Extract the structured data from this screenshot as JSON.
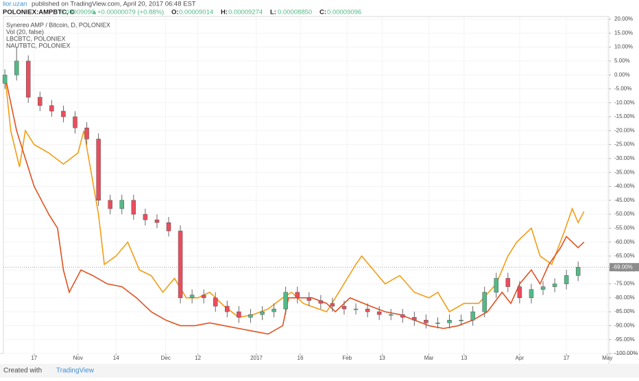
{
  "header": {
    "user": "lior.uzan",
    "published": "published on TradingView.com, April 20, 2017 06:48 EST",
    "symbol": "POLONIEX:AMPBTC, D",
    "last": "0.00009096",
    "arrow": "▲",
    "change": "+0.00000079 (+0.88%)",
    "ohlc": [
      {
        "key": "O:",
        "value": "0.00009014"
      },
      {
        "key": "H:",
        "value": "0.00009274"
      },
      {
        "key": "L:",
        "value": "0.00008850"
      },
      {
        "key": "C:",
        "value": "0.00009096"
      }
    ]
  },
  "footer": {
    "created": "Created with",
    "brand": "TradingView"
  },
  "chart_data": {
    "type": "candlestick",
    "legend": [
      "Synereo AMP / Bitcoin, D, POLONIEX",
      "Vol (20, false)"
    ],
    "ylim": [
      -100,
      20
    ],
    "yticks": [
      {
        "value": 20,
        "label": "20.00%"
      },
      {
        "value": 15,
        "label": "15.00%"
      },
      {
        "value": 10,
        "label": "10.00%"
      },
      {
        "value": 5,
        "label": "5.00%"
      },
      {
        "value": 0,
        "label": "0.00%"
      },
      {
        "value": -5,
        "label": "-5.00%"
      },
      {
        "value": -10,
        "label": "-10.00%"
      },
      {
        "value": -15,
        "label": "-15.00%"
      },
      {
        "value": -20,
        "label": "-20.00%"
      },
      {
        "value": -25,
        "label": "-25.00%"
      },
      {
        "value": -30,
        "label": "-30.00%"
      },
      {
        "value": -35,
        "label": "-35.00%"
      },
      {
        "value": -40,
        "label": "-40.00%"
      },
      {
        "value": -45,
        "label": "-45.00%"
      },
      {
        "value": -50,
        "label": "-50.00%"
      },
      {
        "value": -55,
        "label": "-55.00%"
      },
      {
        "value": -60,
        "label": "-60.00%"
      },
      {
        "value": -65,
        "label": "-65.00%"
      },
      {
        "value": -70,
        "label": "-70.00%"
      },
      {
        "value": -75,
        "label": "-75.00%"
      },
      {
        "value": -80,
        "label": "-80.00%"
      },
      {
        "value": -85,
        "label": "-85.00%"
      },
      {
        "value": -90,
        "label": "-90.00%"
      },
      {
        "value": -95,
        "label": "-95.00%"
      },
      {
        "value": -100,
        "label": "-100.00%"
      }
    ],
    "xlim": [
      -10.5,
      196.5
    ],
    "xticks": [
      {
        "value": 0,
        "label": "17"
      },
      {
        "value": 15,
        "label": "Nov"
      },
      {
        "value": 28,
        "label": "14"
      },
      {
        "value": 45,
        "label": "Dec"
      },
      {
        "value": 56,
        "label": "12"
      },
      {
        "value": 76,
        "label": "2017"
      },
      {
        "value": 91,
        "label": "16"
      },
      {
        "value": 107,
        "label": "Feb"
      },
      {
        "value": 119,
        "label": "13"
      },
      {
        "value": 135,
        "label": "Mar"
      },
      {
        "value": 147,
        "label": "13"
      },
      {
        "value": 166,
        "label": "Apr"
      },
      {
        "value": 182,
        "label": "17"
      },
      {
        "value": 196,
        "label": "May"
      }
    ],
    "last_value": {
      "value": -69,
      "label": "-69.00%"
    },
    "up_color": "#53b987",
    "down_color": "#eb4d5c",
    "candles": {
      "x": [
        -10,
        -6,
        -2,
        2,
        6,
        10,
        14,
        18,
        22,
        26,
        30,
        34,
        38,
        42,
        46,
        50,
        54,
        58,
        62,
        66,
        70,
        74,
        78,
        82,
        86,
        90,
        94,
        98,
        102,
        106,
        110,
        114,
        118,
        122,
        126,
        130,
        134,
        138,
        142,
        146,
        150,
        154,
        158,
        162,
        166,
        170,
        174,
        178,
        182,
        186
      ],
      "open": [
        -3,
        0,
        5,
        -8,
        -11,
        -13,
        -15,
        -19,
        -23,
        -45,
        -48,
        -45,
        -50,
        -52,
        -53,
        -56,
        -80,
        -79,
        -80,
        -83,
        -85,
        -87,
        -86,
        -85,
        -84,
        -78,
        -80,
        -81,
        -82,
        -83,
        -84,
        -84,
        -85,
        -86,
        -86,
        -87,
        -88,
        -89,
        -89,
        -88,
        -88,
        -85,
        -78,
        -73,
        -76,
        -80,
        -77,
        -76,
        -75,
        -72
      ],
      "high": [
        2,
        10,
        7,
        -6,
        -9,
        -11,
        -13,
        -17,
        -21,
        -43,
        -43,
        -43,
        -48,
        -50,
        -51,
        -54,
        -77,
        -77,
        -78,
        -81,
        -83,
        -84,
        -83,
        -82,
        -76,
        -76,
        -78,
        -79,
        -80,
        -81,
        -82,
        -82,
        -83,
        -84,
        -84,
        -85,
        -86,
        -87,
        -86,
        -86,
        -83,
        -76,
        -71,
        -71,
        -74,
        -75,
        -74,
        -73,
        -70,
        -67
      ],
      "low": [
        -5,
        -2,
        -10,
        -13,
        -15,
        -17,
        -21,
        -25,
        -47,
        -50,
        -50,
        -52,
        -54,
        -55,
        -58,
        -82,
        -82,
        -82,
        -85,
        -87,
        -89,
        -89,
        -88,
        -87,
        -86,
        -82,
        -83,
        -84,
        -85,
        -86,
        -86,
        -87,
        -88,
        -88,
        -89,
        -90,
        -91,
        -91,
        -91,
        -90,
        -90,
        -87,
        -80,
        -78,
        -82,
        -82,
        -79,
        -78,
        -77,
        -74
      ],
      "close": [
        0,
        5,
        -8,
        -11,
        -13,
        -15,
        -19,
        -23,
        -45,
        -48,
        -45,
        -50,
        -52,
        -53,
        -56,
        -80,
        -79,
        -80,
        -83,
        -85,
        -87,
        -86,
        -85,
        -84,
        -78,
        -80,
        -81,
        -82,
        -83,
        -84,
        -84,
        -85,
        -86,
        -86,
        -87,
        -88,
        -89,
        -89,
        -88,
        -88,
        -85,
        -78,
        -73,
        -76,
        -80,
        -77,
        -76,
        -75,
        -72,
        -69
      ]
    },
    "series": [
      {
        "name": "LBCBTC, POLONIEX",
        "color": "#f39c12",
        "x": [
          -10,
          -8,
          -5,
          -3,
          0,
          5,
          10,
          15,
          17,
          22,
          24,
          28,
          32,
          36,
          40,
          44,
          48,
          52,
          56,
          60,
          65,
          70,
          75,
          80,
          85,
          88,
          92,
          100,
          103,
          110,
          112,
          116,
          120,
          125,
          130,
          135,
          138,
          142,
          147,
          152,
          158,
          162,
          165,
          170,
          173,
          177,
          181,
          184,
          186,
          188
        ],
        "values": [
          0,
          -20,
          -33,
          -20,
          -25,
          -28,
          -32,
          -28,
          -20,
          -50,
          -68,
          -65,
          -60,
          -70,
          -72,
          -78,
          -73,
          -80,
          -80,
          -78,
          -83,
          -87,
          -86,
          -84,
          -80,
          -78,
          -82,
          -85,
          -80,
          -68,
          -65,
          -70,
          -75,
          -72,
          -78,
          -80,
          -78,
          -85,
          -82,
          -82,
          -75,
          -65,
          -60,
          -55,
          -65,
          -68,
          -57,
          -48,
          -53,
          -49
        ]
      },
      {
        "name": "NAUTBTC, POLONIEX",
        "color": "#e0501f",
        "x": [
          -10,
          -8,
          -6,
          -3,
          0,
          5,
          8,
          10,
          12,
          16,
          20,
          25,
          30,
          35,
          40,
          45,
          50,
          55,
          60,
          65,
          70,
          75,
          80,
          85,
          87,
          95,
          100,
          103,
          108,
          115,
          120,
          125,
          130,
          135,
          140,
          145,
          150,
          155,
          160,
          163,
          166,
          170,
          173,
          176,
          180,
          182,
          186,
          188
        ],
        "values": [
          0,
          -10,
          -20,
          -30,
          -40,
          -50,
          -55,
          -70,
          -78,
          -70,
          -72,
          -75,
          -76,
          -80,
          -85,
          -88,
          -90,
          -90,
          -89,
          -90,
          -91,
          -92,
          -93,
          -90,
          -80,
          -80,
          -82,
          -85,
          -80,
          -83,
          -85,
          -86,
          -88,
          -90,
          -91,
          -90,
          -88,
          -85,
          -78,
          -82,
          -75,
          -70,
          -75,
          -68,
          -62,
          -58,
          -62,
          -60
        ]
      }
    ]
  }
}
